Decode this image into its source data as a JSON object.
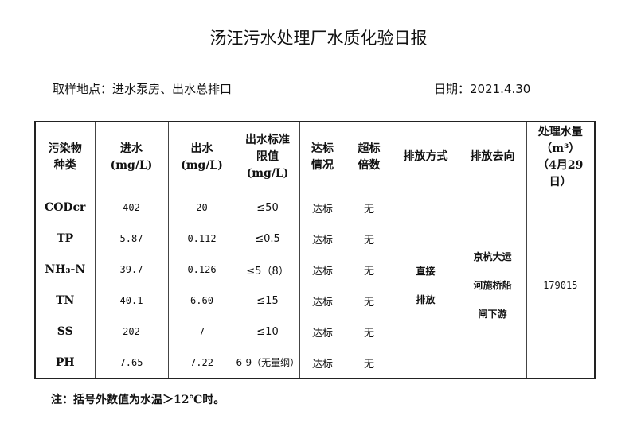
{
  "title": "汤汪污水处理厂水质化验日报",
  "location": "取样地点：进水泵房、出水总排口",
  "date": "日期：2021.4.30",
  "headers": [
    "污染物种类",
    "进水(mg/L)",
    "出水(mg/L)",
    "出水标准限值(mg/L)",
    "达标情况",
    "超标倍数",
    "排放方式",
    "排放去向",
    "处理水量（m³）（4月29日）"
  ],
  "rows": [
    {
      "item": "CODcr",
      "inflow": "402",
      "outflow": "20",
      "limit": "≤50",
      "status": "达标",
      "exceed": "无"
    },
    {
      "item": "TP",
      "inflow": "5.87",
      "outflow": "0.112",
      "limit": "≤0.5",
      "status": "达标",
      "exceed": "无"
    },
    {
      "item": "NH₃-N",
      "inflow": "39.7",
      "outflow": "0.126",
      "limit": "≤5（8）",
      "status": "达标",
      "exceed": "无"
    },
    {
      "item": "TN",
      "inflow": "40.1",
      "outflow": "6.60",
      "limit": "≤15",
      "status": "达标",
      "exceed": "无"
    },
    {
      "item": "SS",
      "inflow": "202",
      "outflow": "7",
      "limit": "≤10",
      "status": "达标",
      "exceed": "无"
    },
    {
      "item": "PH",
      "inflow": "7.65",
      "outflow": "7.22",
      "limit": "6-9（无量纲）",
      "status": "达标",
      "exceed": "无"
    }
  ],
  "discharge_method": "直接排放",
  "discharge_destination": "京杭大运河施桥船闸下游",
  "treated_volume": "179015",
  "note": "注：括号外数值为水温＞12℃时。"
}
